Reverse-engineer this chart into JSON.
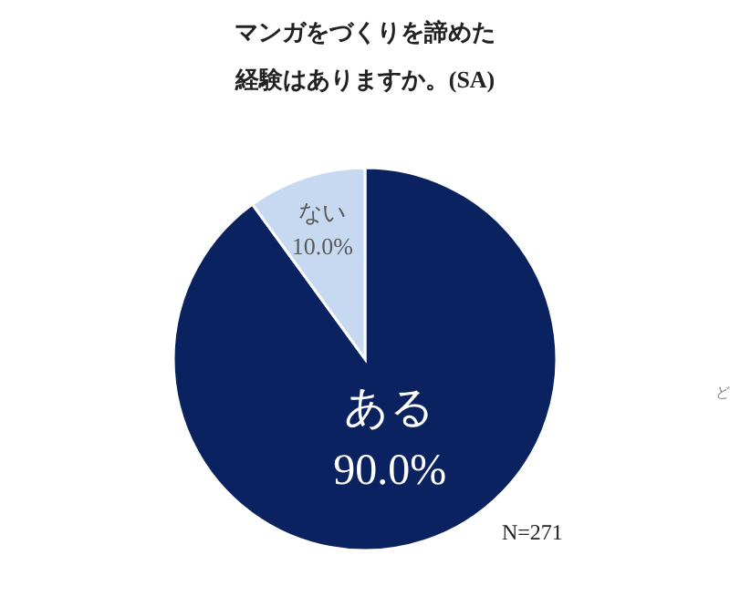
{
  "chart_data": {
    "type": "pie",
    "title": "マンガをづくりを諦めた",
    "subtitle": "経験はありますか。(SA)",
    "categories": [
      "ある",
      "ない"
    ],
    "values": [
      90,
      10
    ],
    "colors": [
      "#0b2260",
      "#c6d9f0"
    ],
    "value_labels": [
      "90.0%",
      "10.0%"
    ],
    "annotations": [
      "N=271",
      "ど"
    ]
  }
}
